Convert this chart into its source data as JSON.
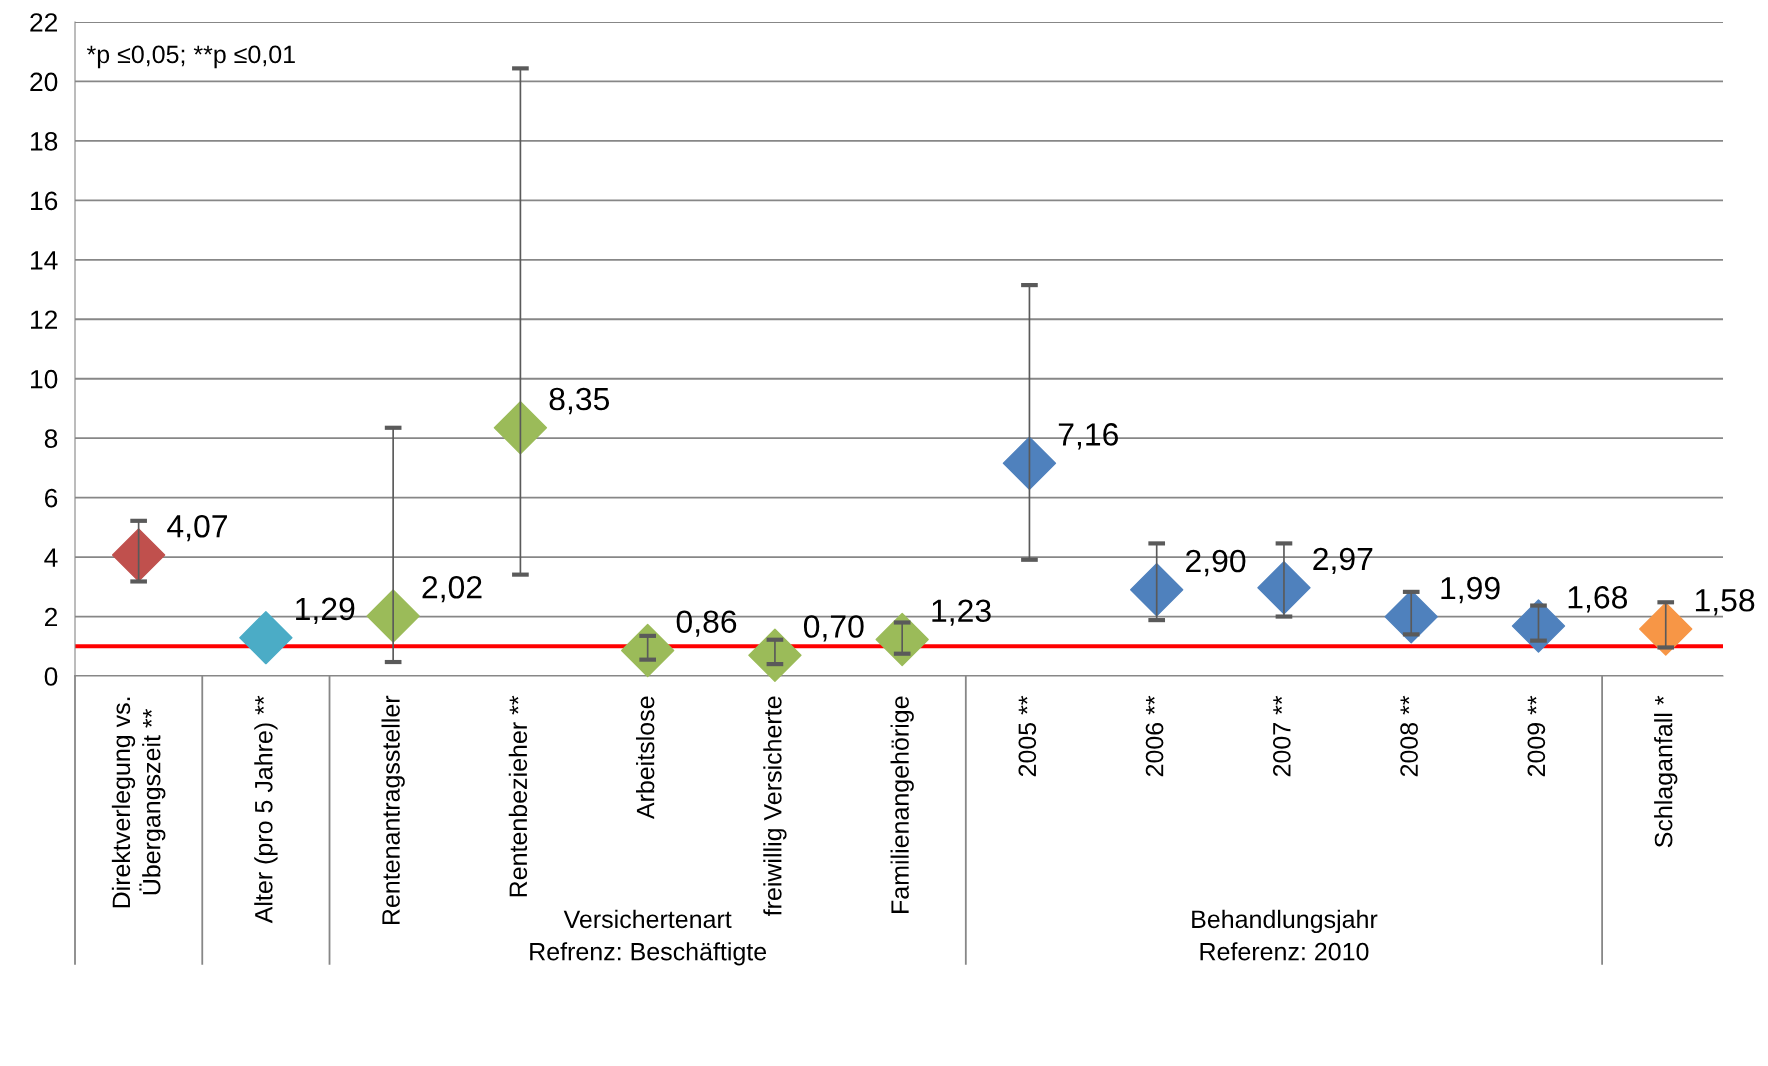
{
  "chart_data": {
    "type": "scatter",
    "marker": "diamond",
    "grid": "y",
    "categories": [
      "Direktverlegung vs.\nÜbergangszeit **",
      "Alter (pro 5 Jahre) **",
      "Rentenantragssteller",
      "Rentenbezieher **",
      "Arbeitslose",
      "freiwillig Versicherte",
      "Familienangehörige",
      "2005 **",
      "2006 **",
      "2007 **",
      "2008 **",
      "2009 **",
      "Schlaganfall *"
    ],
    "values": [
      4.07,
      1.29,
      2.02,
      8.35,
      0.86,
      0.7,
      1.23,
      7.16,
      2.9,
      2.97,
      1.99,
      1.68,
      1.58
    ],
    "value_labels": [
      "4,07",
      "1,29",
      "2,02",
      "8,35",
      "0,86",
      "0,70",
      "1,23",
      "7,16",
      "2,90",
      "2,97",
      "1,99",
      "1,68",
      "1,58"
    ],
    "colors": [
      "#c0504d",
      "#4bacc6",
      "#9bbb59",
      "#9bbb59",
      "#9bbb59",
      "#9bbb59",
      "#9bbb59",
      "#4f81bd",
      "#4f81bd",
      "#4f81bd",
      "#4f81bd",
      "#4f81bd",
      "#f79646"
    ],
    "errors": [
      [
        3.18,
        5.22
      ],
      null,
      [
        0.47,
        8.35
      ],
      [
        3.41,
        20.44
      ],
      [
        0.55,
        1.35
      ],
      [
        0.4,
        1.22
      ],
      [
        0.75,
        1.8
      ],
      [
        3.91,
        13.15
      ],
      [
        1.88,
        4.46
      ],
      [
        2.0,
        4.46
      ],
      [
        1.4,
        2.83
      ],
      [
        1.19,
        2.37
      ],
      [
        0.96,
        2.48
      ]
    ],
    "ylim": [
      0,
      22
    ],
    "yticks": [
      0,
      2,
      4,
      6,
      8,
      10,
      12,
      14,
      16,
      18,
      20,
      22
    ],
    "ref_lines": [
      {
        "axis": "y",
        "value": 1,
        "color": "#ff0000"
      }
    ],
    "annotations": [
      "*p ≤0,05; **p ≤0,01",
      "Versichertenart\nRefrenz: Beschäftigte",
      "Behandlungsjahr\nReferenz: 2010"
    ],
    "legend": false
  }
}
